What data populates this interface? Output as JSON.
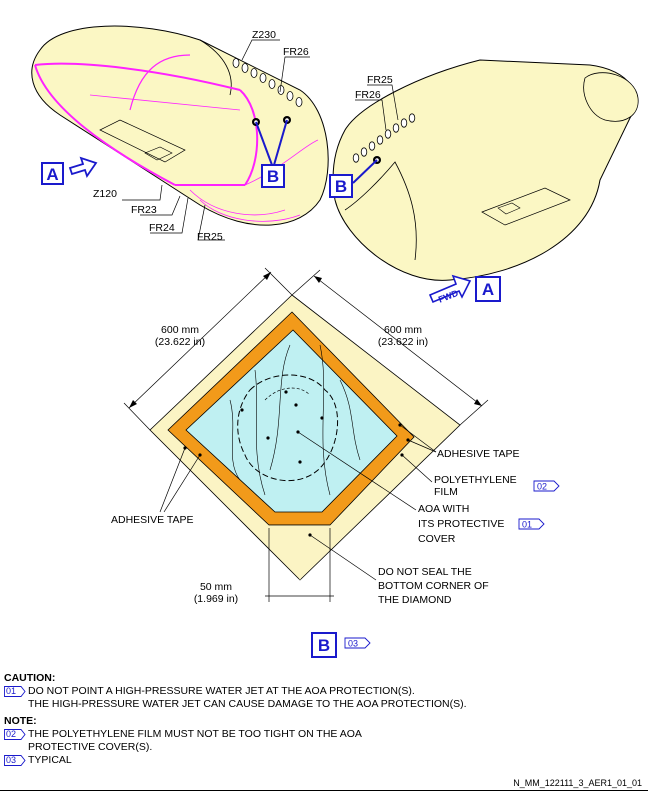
{
  "top_view": {
    "frame_labels": [
      "Z230",
      "FR26",
      "Z120",
      "FR23",
      "FR24",
      "FR25"
    ],
    "right_frame_labels": [
      "FR25",
      "FR26"
    ],
    "view_a_letter": "A",
    "detail_b_letter": "B",
    "fwd_label": "FWD"
  },
  "detail": {
    "dim_left_mm": "600 mm",
    "dim_left_in": "(23.622 in)",
    "dim_right_mm": "600 mm",
    "dim_right_in": "(23.622 in)",
    "adhesive_tape_right": "ADHESIVE TAPE",
    "polyethylene_line1": "POLYETHYLENE",
    "polyethylene_line2": "FILM",
    "polyethylene_ref": "02",
    "aoa_line1": "AOA WITH",
    "aoa_line2": "ITS PROTECTIVE",
    "aoa_line3": "COVER",
    "aoa_ref": "01",
    "adhesive_tape_left": "ADHESIVE TAPE",
    "dim_bottom_mm": "50 mm",
    "dim_bottom_in": "(1.969 in)",
    "do_not_seal_line1": "DO NOT SEAL THE",
    "do_not_seal_line2": "BOTTOM CORNER OF",
    "do_not_seal_line3": "THE DIAMOND",
    "view_letter": "B",
    "view_ref": "03"
  },
  "notes": {
    "caution_heading": "CAUTION:",
    "caution_ref": "01",
    "caution_line1": "DO NOT POINT A HIGH-PRESSURE WATER JET AT THE AOA PROTECTION(S).",
    "caution_line2": "THE HIGH-PRESSURE WATER JET CAN CAUSE DAMAGE TO THE AOA PROTECTION(S).",
    "note_heading": "NOTE:",
    "note1_ref": "02",
    "note1_line1": "THE POLYETHYLENE FILM MUST NOT BE TOO TIGHT ON THE AOA",
    "note1_line2": "PROTECTIVE COVER(S).",
    "note2_ref": "03",
    "note2_line1": "TYPICAL"
  },
  "document_ref": "N_MM_122111_3_AER1_01_01",
  "colors": {
    "fuselage": "#fbf7c4",
    "highlight": "#ff22ff",
    "tape": "#f29a1a",
    "film": "#bff0f2",
    "outer_margin": "#fbf4c4",
    "callout_blue": "#1a1acc"
  }
}
